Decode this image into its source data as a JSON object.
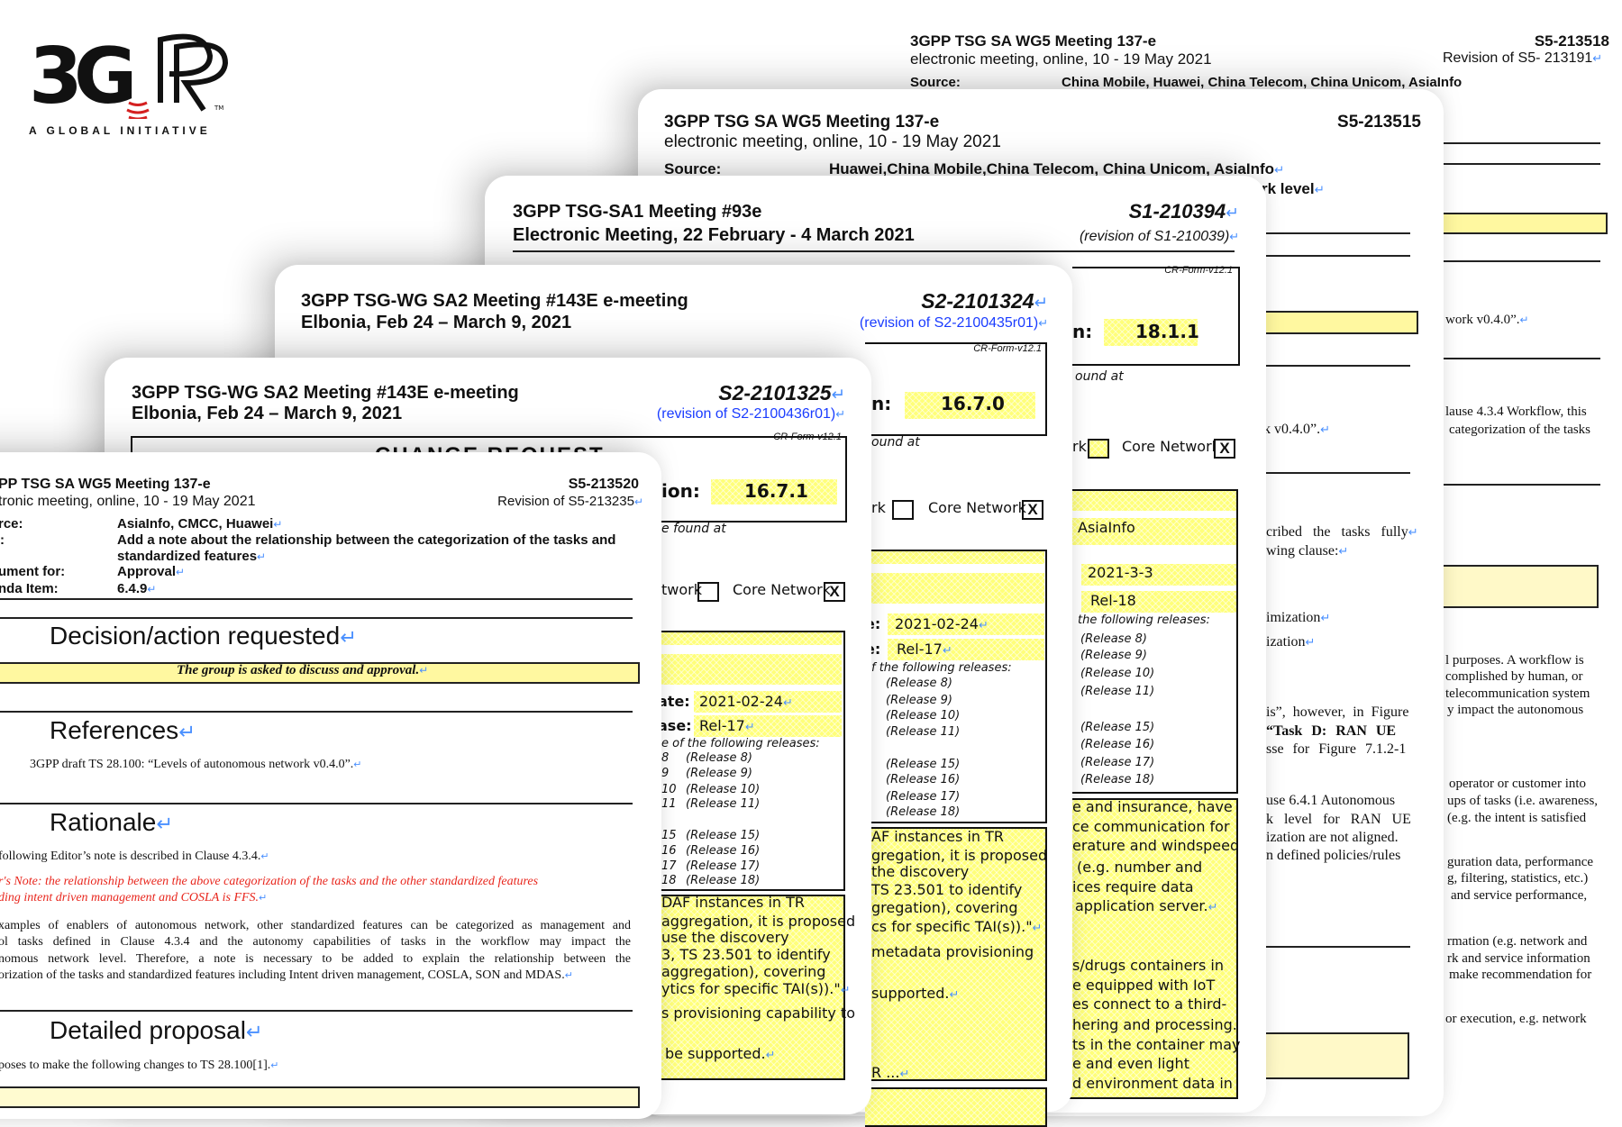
{
  "logo": {
    "wordmark": "3GPP",
    "tagline": "A GLOBAL INITIATIVE",
    "colors": {
      "mark": "#111111",
      "waves": "#d42020"
    }
  },
  "p1": {
    "meeting": "3GPP TSG SA WG5 Meeting 137-e",
    "location": "electronic meeting, online, 10 - 19 May 2021",
    "doc_id": "S5-213518",
    "revision": "Revision of S5- 213191",
    "source_label": "Source:",
    "source": "China Mobile, Huawei, China Telecom, China Unicom, AsiaInfo",
    "frag": [
      "work v0.4.0”.",
      "lause 4.3.4 Workflow, this",
      "categorization of the tasks",
      "l purposes. A workflow is",
      "complished by human, or",
      "telecommunication system",
      "y impact the autonomous",
      "operator or customer into",
      "ups of tasks (i.e. awareness,",
      "(e.g. the intent is satisfied",
      "guration data, performance",
      "g, filtering, statistics, etc.)",
      "and service performance,",
      "rmation (e.g. network and",
      "rk and service information",
      "make recommendation for",
      "or execution, e.g. network"
    ]
  },
  "p2": {
    "meeting": "3GPP TSG SA WG5 Meeting 137-e",
    "location": "electronic meeting, online, 10 - 19 May 2021",
    "doc_id": "S5-213515",
    "source_label": "Source:",
    "source": "Huawei,China Mobile,China Telecom, China Unicom, AsiaInfo",
    "title_frag": "rk level",
    "frag": [
      "k v0.4.0”.",
      "cribed the tasks fully",
      "wing clause:",
      "imization",
      "ization",
      "is”, however, in Figure",
      "“Task D: RAN UE",
      "sse for Figure 7.1.2-1",
      "use 6.4.1 Autonomous",
      "k level for RAN UE",
      "ization are not aligned.",
      "n defined policies/rules"
    ]
  },
  "p3": {
    "meeting": "3GPP TSG-SA1 Meeting #93e",
    "location": "Electronic Meeting, 22 February - 4 March 2021",
    "doc_id": "S1-210394",
    "revision": "(revision of S1-210039)",
    "form": "CR-Form-v12.1",
    "version_label": "n:",
    "version": "18.1.1",
    "found_at": "ound at",
    "ran_label": "rk",
    "core_label": "Core Network",
    "core_mark": "X",
    "source": "AsiaInfo",
    "date": "2021-3-3",
    "release": "Rel-18",
    "releases_label": "the following releases:",
    "releases_a": [
      "(Release 8)",
      "(Release 9)",
      "(Release 10)",
      "(Release 11)"
    ],
    "releases_b": [
      "(Release 15)",
      "(Release 16)",
      "(Release 17)",
      "(Release 18)"
    ],
    "body": [
      "e and insurance, have",
      "ce communication for",
      "erature and windspeed",
      "(e.g. number and",
      "ices require data",
      "application server.",
      "s/drugs containers in",
      "e equipped with IoT",
      "es connect to a third-",
      "hering and processing.",
      "ts in the container may",
      "e and even light",
      "d environment data in"
    ]
  },
  "p4": {
    "meeting": "3GPP TSG-WG SA2 Meeting #143E e-meeting",
    "location": "Elbonia, Feb 24 – March 9, 2021",
    "doc_id": "S2-2101324",
    "revision": "(revision of S2-2100435r01)",
    "form": "CR-Form-v12.1",
    "version_label": "n:",
    "version": "16.7.0",
    "found_at": "ound at",
    "ran_label": "rk",
    "core_label": "Core Network",
    "core_mark": "X",
    "date_label": "e:",
    "date": "2021-02-24",
    "release_label": "e:",
    "release": "Rel-17",
    "releases_label": "f the following releases:",
    "releases_a": [
      "(Release 8)",
      "(Release 9)",
      "(Release 10)",
      "(Release 11)"
    ],
    "releases_b": [
      "(Release 15)",
      "(Release 16)",
      "(Release 17)",
      "(Release 18)"
    ],
    "body": [
      "AF instances in TR",
      "gregation, it is proposed",
      "the discovery",
      "TS 23.501 to identify",
      "gregation), covering",
      "cs for specific TAI(s)).\"",
      "metadata provisioning",
      "supported."
    ],
    "tail": "R ..."
  },
  "p5": {
    "meeting": "3GPP TSG-WG SA2 Meeting #143E e-meeting",
    "location": "Elbonia, Feb 24 – March 9, 2021",
    "doc_id": "S2-2101325",
    "revision": "(revision of S2-2100436r01)",
    "form": "CR-Form-v12.1",
    "form_title": "CHANGE REQUEST",
    "version_label": "ion:",
    "version": "16.7.1",
    "found_at": "e found at",
    "ran_label": "twork",
    "core_label": "Core Network",
    "core_mark": "X",
    "date_label": "ate:",
    "date": "2021-02-24",
    "release_label": "ase:",
    "release": "Rel-17",
    "releases_label": "e of the following releases:",
    "release_nums_a": [
      "8",
      "9",
      "10",
      "11"
    ],
    "releases_a": [
      "(Release 8)",
      "(Release 9)",
      "(Release 10)",
      "(Release 11)"
    ],
    "release_nums_b": [
      "15",
      "16",
      "17",
      "18"
    ],
    "releases_b": [
      "(Release 15)",
      "(Release 16)",
      "(Release 17)",
      "(Release 18)"
    ],
    "body": [
      "DAF instances in TR",
      "aggregation, it is proposed",
      "use the discovery",
      "3, TS 23.501 to identify",
      "aggregation), covering",
      "ytics for specific TAI(s)).\"",
      "s provisioning capability to",
      "be supported."
    ]
  },
  "p6": {
    "meeting": "PP TSG SA WG5 Meeting 137-e",
    "location": "tronic meeting, online, 10 - 19 May 2021",
    "doc_id": "S5-213520",
    "revision": "Revision of S5-213235",
    "source_label": "rce:",
    "source": "AsiaInfo, CMCC, Huawei",
    "title_label": ":",
    "title_1": "Add a note about the relationship between the categorization of the tasks and",
    "title_2": "standardized features",
    "docfor_label": "ument for:",
    "docfor": "Approval",
    "agenda_label": "nda Item:",
    "agenda": "6.4.9",
    "h_decision": "Decision/action requested",
    "decision_text": "The group is asked to discuss and approval.",
    "h_references": "References",
    "reference_1": "3GPP draft TS 28.100: “Levels of autonomous network v0.4.0”.",
    "h_rationale": "Rationale",
    "rationale_1": "following Editor’s note is described in Clause 4.3.4.",
    "note_1": "r's Note: the relationship between the above categorization of the tasks and the other standardized features",
    "note_2": "ding intent driven management and COSLA is FFS.",
    "para": [
      "xamples of enablers of autonomous network, other standardized features can be categorized as management and",
      "ol tasks defined in Clause 4.3.4 and the autonomy capabilities of tasks in the workflow may impact the",
      "nomous network level. Therefore, a note is necessary to be added to explain the relationship between the",
      "orization of the tasks and standardized features including Intent driven management, COSLA, SON and MDAS."
    ],
    "h_proposal": "Detailed proposal",
    "proposal_1": "poses to make the following changes to TS 28.100[1]."
  }
}
